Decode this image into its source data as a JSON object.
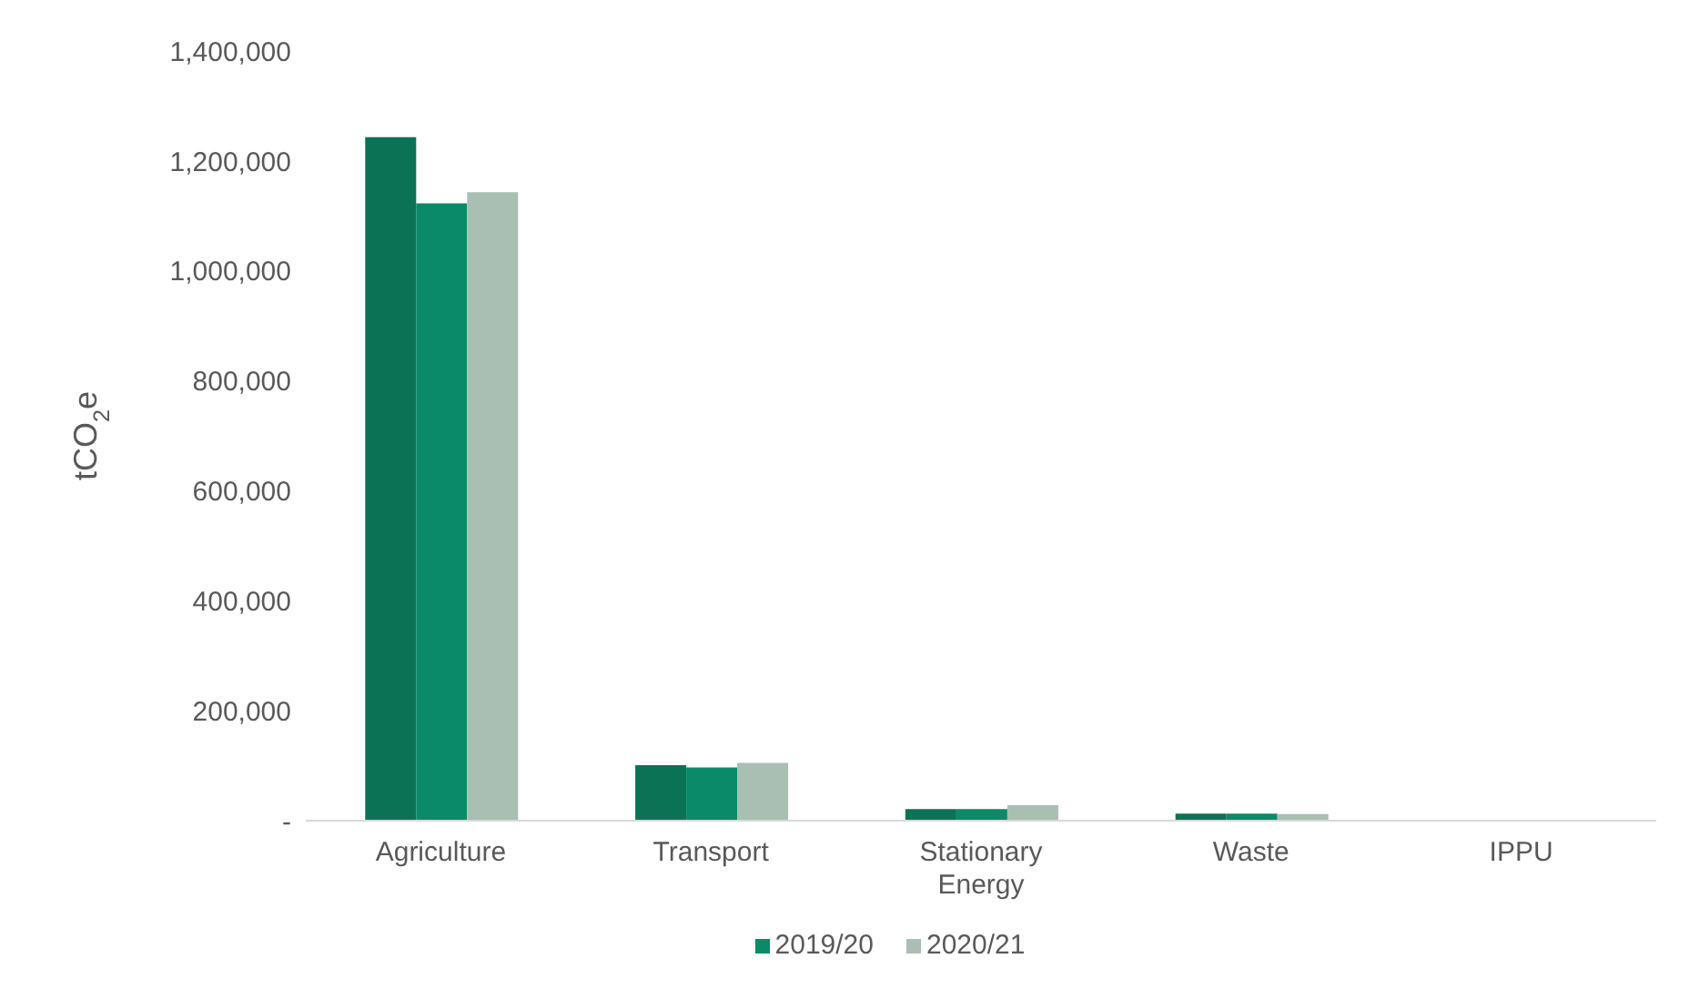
{
  "chart_data": {
    "type": "bar",
    "ylabel": "tCO$_{2}$e",
    "categories": [
      "Agriculture",
      "Transport",
      "Stationary Energy",
      "Waste",
      "IPPU"
    ],
    "series": [
      {
        "color": "#0b7355",
        "values": [
          1243000,
          101000,
          21000,
          13000,
          null
        ]
      },
      {
        "name": "2019/20",
        "color": "#0a8a66",
        "values": [
          1123000,
          97000,
          21000,
          13000,
          null
        ]
      },
      {
        "name": "2020/21",
        "color": "#a9bfb3",
        "values": [
          1143000,
          105000,
          28000,
          12000,
          null
        ]
      }
    ],
    "ylim": [
      0,
      1400000
    ],
    "yticks": [
      {
        "value": 0,
        "label": "-"
      },
      {
        "value": 200000,
        "label": "200,000"
      },
      {
        "value": 400000,
        "label": "400,000"
      },
      {
        "value": 600000,
        "label": "600,000"
      },
      {
        "value": 800000,
        "label": "800,000"
      },
      {
        "value": 1000000,
        "label": "1,000,000"
      },
      {
        "value": 1200000,
        "label": "1,200,000"
      },
      {
        "value": 1400000,
        "label": "1,400,000"
      }
    ],
    "legend": "bottom"
  }
}
